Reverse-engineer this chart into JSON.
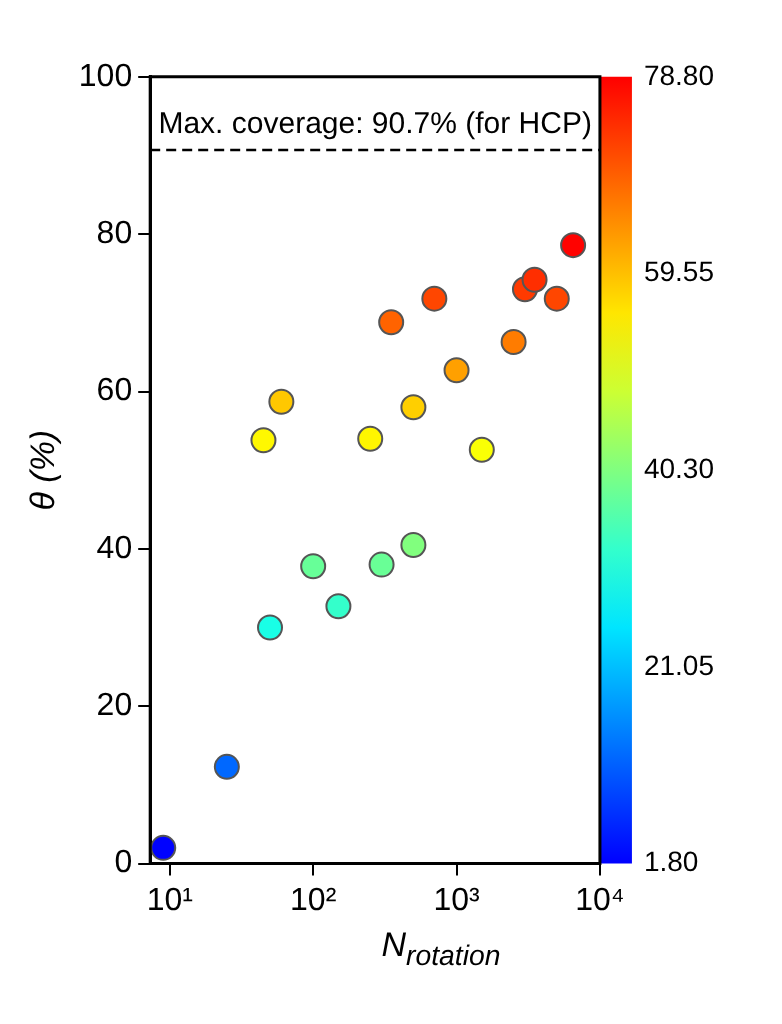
{
  "chart_data": {
    "type": "scatter",
    "xlabel": "N$_{rotation}$",
    "ylabel": "θ (%)",
    "x": [
      9,
      25,
      50,
      100,
      150,
      300,
      500,
      45,
      60,
      250,
      350,
      500,
      700,
      1000,
      1500,
      2500,
      3000,
      3500,
      5000,
      6500
    ],
    "values": [
      2,
      12.3,
      30,
      37.8,
      32.7,
      38,
      40.5,
      53.8,
      58.7,
      54,
      68.8,
      58,
      71.8,
      62.7,
      52.6,
      66.3,
      73,
      74.2,
      71.8,
      78.6
    ],
    "cvalues": [
      2,
      12.3,
      30,
      37.8,
      32.7,
      38,
      40.5,
      53.8,
      58.7,
      54,
      68.8,
      58,
      71.8,
      62.7,
      52.6,
      66.3,
      73,
      74.2,
      71.8,
      78.6
    ],
    "clim": [
      1.8,
      78.8
    ],
    "cticks": [
      {
        "value": 1.8,
        "label": "1.80"
      },
      21.05,
      {
        "value": 40.3,
        "label": "40.30"
      },
      59.55,
      {
        "value": 78.8,
        "label": "78.80"
      }
    ],
    "log": "x",
    "xlim": [
      7.3,
      10000
    ],
    "xticks": [
      {
        "value": 10,
        "label": "10¹"
      },
      {
        "value": 100,
        "label": "10²"
      },
      {
        "value": 1000,
        "label": "10³"
      },
      {
        "value": 10000,
        "label": "10⁴"
      }
    ],
    "ylim": [
      0,
      100
    ],
    "yticks": [
      0,
      20,
      40,
      60,
      80,
      100
    ],
    "ref_lines": [
      {
        "axis": "y",
        "value": 90.7,
        "label": "Max. coverage: 90.7% (for HCP)",
        "color": "#000000",
        "line_style": "dashed"
      }
    ],
    "grid": false,
    "legend": false,
    "marker": "circle"
  }
}
